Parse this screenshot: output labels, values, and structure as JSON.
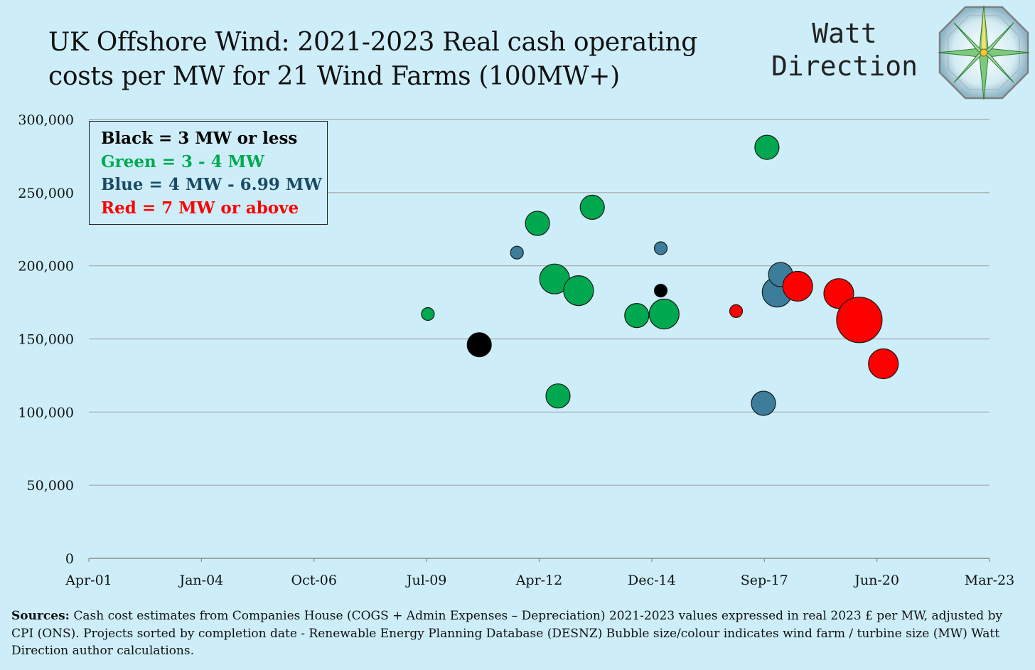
{
  "header": {
    "title_line1": "UK Offshore Wind:  2021-2023 Real cash operating",
    "title_line2": "costs per MW for 21 Wind Farms (100MW+)",
    "brand_line1": "Watt",
    "brand_line2": "Direction"
  },
  "legend": {
    "black": "Black = 3 MW or less",
    "green": "Green = 3 - 4 MW",
    "blue": "Blue = 4 MW -  6.99 MW",
    "red": "Red =  7 MW or above"
  },
  "colors": {
    "background": "#cdeef9",
    "black": "#000000",
    "green": "#00a94f",
    "blue": "#3b7d9a",
    "blue_text": "#1b4a66",
    "red": "#ff0000",
    "grid": "#a6a6a6"
  },
  "footer": {
    "sources_label": "Sources:",
    "sources_text": " Cash cost estimates from Companies House (COGS + Admin Expenses – Depreciation) 2021-2023 values expressed in real 2023  £ per MW, adjusted by CPI (ONS). Projects sorted by completion date - Renewable Energy Planning Database (DESNZ) Bubble size/colour indicates wind farm / turbine size (MW) Watt Direction author calculations."
  },
  "chart_data": {
    "type": "scatter",
    "title": "UK Offshore Wind:  2021-2023 Real cash operating costs per MW for 21 Wind Farms (100MW+)",
    "xlabel": "",
    "ylabel": "",
    "x_ticks": [
      "Apr-01",
      "Jan-04",
      "Oct-06",
      "Jul-09",
      "Apr-12",
      "Dec-14",
      "Sep-17",
      "Jun-20",
      "Mar-23"
    ],
    "x_range": [
      "2001-04",
      "2023-03"
    ],
    "y_ticks": [
      "0",
      "50,000",
      "100,000",
      "150,000",
      "200,000",
      "250,000",
      "300,000"
    ],
    "ylim": [
      0,
      300000
    ],
    "grid": "horizontal",
    "legend_position": "top-left",
    "points": [
      {
        "x": "2009-07",
        "y": 167000,
        "color": "green",
        "size": "small"
      },
      {
        "x": "2010-10",
        "y": 146000,
        "color": "black",
        "size": "medium"
      },
      {
        "x": "2011-09",
        "y": 209000,
        "color": "blue",
        "size": "small"
      },
      {
        "x": "2012-03",
        "y": 229000,
        "color": "green",
        "size": "medium"
      },
      {
        "x": "2012-08",
        "y": 191000,
        "color": "green",
        "size": "large"
      },
      {
        "x": "2012-09",
        "y": 111000,
        "color": "green",
        "size": "medium"
      },
      {
        "x": "2013-03",
        "y": 183000,
        "color": "green",
        "size": "large"
      },
      {
        "x": "2013-07",
        "y": 240000,
        "color": "green",
        "size": "medium"
      },
      {
        "x": "2014-08",
        "y": 166000,
        "color": "green",
        "size": "medium"
      },
      {
        "x": "2015-03",
        "y": 212000,
        "color": "blue",
        "size": "small"
      },
      {
        "x": "2015-03",
        "y": 183000,
        "color": "black",
        "size": "small"
      },
      {
        "x": "2015-04",
        "y": 167000,
        "color": "green",
        "size": "large"
      },
      {
        "x": "2017-01",
        "y": 169000,
        "color": "red",
        "size": "small"
      },
      {
        "x": "2017-09",
        "y": 106000,
        "color": "blue",
        "size": "medium"
      },
      {
        "x": "2017-10",
        "y": 281000,
        "color": "green",
        "size": "medium"
      },
      {
        "x": "2018-01",
        "y": 182000,
        "color": "blue",
        "size": "large"
      },
      {
        "x": "2018-02",
        "y": 194000,
        "color": "blue",
        "size": "medium"
      },
      {
        "x": "2018-07",
        "y": 186000,
        "color": "red",
        "size": "large"
      },
      {
        "x": "2019-07",
        "y": 181000,
        "color": "red",
        "size": "large"
      },
      {
        "x": "2020-01",
        "y": 163000,
        "color": "red",
        "size": "xlarge"
      },
      {
        "x": "2020-08",
        "y": 133000,
        "color": "red",
        "size": "large"
      }
    ]
  }
}
